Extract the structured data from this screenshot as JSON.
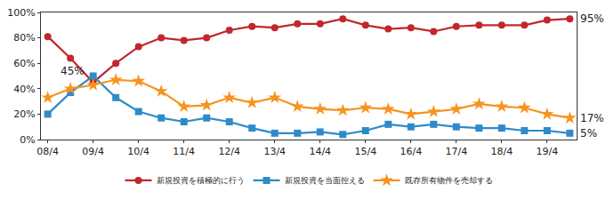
{
  "chart_data": {
    "type": "line",
    "categories": [
      "08/4",
      null,
      "09/4",
      null,
      "10/4",
      null,
      "11/4",
      null,
      "12/4",
      null,
      "13/4",
      null,
      "14/4",
      null,
      "15/4",
      null,
      "16/4",
      null,
      "17/4",
      null,
      "18/4",
      null,
      "19/4",
      null
    ],
    "series": [
      {
        "name": "新規投資を積極的に行う",
        "color": "#c1272d",
        "marker": "circle",
        "values": [
          81,
          64,
          45,
          60,
          73,
          80,
          78,
          80,
          86,
          89,
          88,
          91,
          91,
          95,
          90,
          87,
          88,
          85,
          89,
          90,
          90,
          90,
          94,
          95
        ]
      },
      {
        "name": "新規投資を当面控える",
        "color": "#2f8ac9",
        "marker": "square",
        "values": [
          20,
          37,
          50,
          33,
          22,
          17,
          14,
          17,
          14,
          9,
          5,
          5,
          6,
          4,
          7,
          12,
          10,
          12,
          10,
          9,
          9,
          7,
          7,
          5
        ]
      },
      {
        "name": "既存所有物件を売却する",
        "color": "#f7931e",
        "marker": "star",
        "values": [
          33,
          40,
          43,
          47,
          46,
          38,
          26,
          27,
          33,
          29,
          33,
          26,
          24,
          23,
          25,
          24,
          20,
          22,
          24,
          28,
          26,
          25,
          20,
          17
        ]
      }
    ],
    "ylim": [
      0,
      100
    ],
    "yticks": [
      {
        "value": 0,
        "label": "0%"
      },
      {
        "value": 20,
        "label": "20%"
      },
      {
        "value": 40,
        "label": "40%"
      },
      {
        "value": 60,
        "label": "60%"
      },
      {
        "value": 80,
        "label": "80%"
      },
      {
        "value": 100,
        "label": "100%"
      }
    ],
    "grid": false,
    "legend": "bottom",
    "annotations": [
      {
        "text": "45%",
        "x": 2,
        "y": 45
      },
      {
        "text": "95%",
        "x": 23,
        "y": 95
      },
      {
        "text": "17%",
        "x": 23,
        "y": 17
      },
      {
        "text": "5%",
        "x": 23,
        "y": 5
      }
    ]
  }
}
